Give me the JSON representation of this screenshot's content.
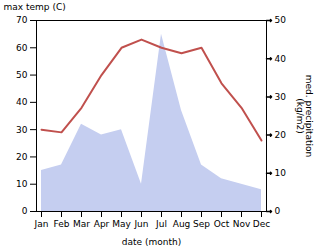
{
  "chart_data": {
    "type": "line",
    "categories": [
      "Jan",
      "Feb",
      "Mar",
      "Apr",
      "May",
      "Jun",
      "Jul",
      "Aug",
      "Sep",
      "Oct",
      "Nov",
      "Dec"
    ],
    "series": [
      {
        "type": "area",
        "color": "#c5cef0",
        "values": [
          15,
          17,
          32,
          28,
          30,
          10,
          65,
          37,
          17,
          12,
          10,
          8
        ]
      },
      {
        "type": "line",
        "color": "#c0504d",
        "values": [
          30,
          29,
          38,
          50,
          60,
          63,
          60,
          58,
          60,
          47,
          38,
          26
        ]
      }
    ],
    "xlabel": "date (month)",
    "ylabel": "max temp (C)",
    "ylim": [
      0,
      70
    ],
    "yticks": [
      0,
      10,
      20,
      30,
      40,
      50,
      60,
      70
    ],
    "y2label": "med. precipitation\n(kg/m2)",
    "y2lim": [
      0,
      50
    ],
    "y2ticks": [
      0,
      10,
      20,
      30,
      40,
      50
    ],
    "grid": false
  }
}
